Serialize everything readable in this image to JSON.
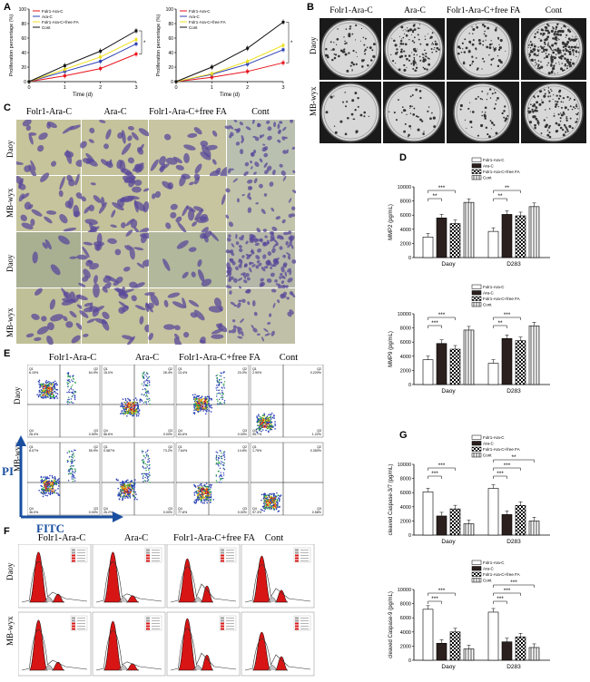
{
  "panels": {
    "A": "A",
    "B": "B",
    "C": "C",
    "D": "D",
    "E": "E",
    "F": "F",
    "G": "G"
  },
  "col_headers": [
    "Folr1-Ara-C",
    "Ara-C",
    "Folr1-Ara-C+free FA",
    "Cont"
  ],
  "row_labels": {
    "daoy": "Daoy",
    "mbwyx": "MB-wyx"
  },
  "flow_axes": {
    "y": "PI",
    "x": "FITC"
  },
  "flow_quadrants": {
    "daoy": [
      {
        "q1": "Q1",
        "q1v": "6.15%",
        "q2": "Q2",
        "q2v": "64.9%",
        "q3": "Q3",
        "q3v": "0.59%",
        "q4": "Q4",
        "q4v": "28.4%"
      },
      {
        "q1": "Q1",
        "q1v": "15.0%",
        "q2": "Q2",
        "q2v": "28.4%",
        "q3": "Q3",
        "q3v": "0.00%",
        "q4": "Q4",
        "q4v": "56.6%"
      },
      {
        "q1": "Q1",
        "q1v": "13.4%",
        "q2": "Q2",
        "q2v": "23.0%",
        "q3": "Q3",
        "q3v": "0.00%",
        "q4": "Q4",
        "q4v": "63.6%"
      },
      {
        "q1": "Q1",
        "q1v": "2.90%",
        "q2": "Q2",
        "q2v": "0.220%",
        "q3": "Q3",
        "q3v": "1.22%",
        "q4": "Q4",
        "q4v": "95.7%"
      }
    ],
    "mbwyx": [
      {
        "q1": "Q1",
        "q1v": "8.07%",
        "q2": "Q2",
        "q2v": "55.9%",
        "q3": "Q3",
        "q3v": "0.00%",
        "q4": "Q4",
        "q4v": "36.0%"
      },
      {
        "q1": "Q1",
        "q1v": "0.587%",
        "q2": "Q2",
        "q2v": "73.2%",
        "q3": "Q3",
        "q3v": "0.00%",
        "q4": "Q4",
        "q4v": "26.2%"
      },
      {
        "q1": "Q1",
        "q1v": "7.64%",
        "q2": "Q2",
        "q2v": "14.6%",
        "q3": "Q3",
        "q3v": "0.00%",
        "q4": "Q4",
        "q4v": "77.8%"
      },
      {
        "q1": "Q1",
        "q1v": "1.75%",
        "q2": "Q2",
        "q2v": "0.350%",
        "q3": "Q3",
        "q3v": "0.58%",
        "q4": "Q4",
        "q4v": "97.3%"
      }
    ]
  },
  "colors": {
    "folr1": "#e8121a",
    "arac": "#2b3fb5",
    "freefa": "#f0e020",
    "cont": "#111111",
    "crystal": "#5a4a9a",
    "bg_stain": "#c9c6a0",
    "flow_red": "#d81515"
  },
  "chart_data": [
    {
      "type": "line",
      "x": [
        0,
        1,
        2,
        3
      ],
      "xlabel": "Time (d)",
      "ylabel": "Proliferation percentage (%)",
      "ylim": [
        0,
        100
      ],
      "yticks": [
        "0",
        "20",
        "40",
        "60",
        "80",
        "100"
      ],
      "xticks": [
        "0",
        "1",
        "2",
        "3"
      ],
      "sig": "*",
      "series": [
        {
          "name": "Folr1-Ara-C",
          "values": [
            0,
            8,
            18,
            38
          ]
        },
        {
          "name": "Ara-C",
          "values": [
            0,
            14,
            28,
            52
          ]
        },
        {
          "name": "Folr1-Ara-C+free FA",
          "values": [
            0,
            17,
            34,
            58
          ]
        },
        {
          "name": "Cont",
          "values": [
            0,
            22,
            42,
            70
          ]
        }
      ]
    },
    {
      "type": "line",
      "x": [
        0,
        1,
        2,
        3
      ],
      "xlabel": "Time (d)",
      "ylabel": "Proliferation percentage (%)",
      "ylim": [
        0,
        100
      ],
      "yticks": [
        "0",
        "20",
        "40",
        "60",
        "80",
        "100"
      ],
      "xticks": [
        "0",
        "1",
        "2",
        "3"
      ],
      "sig": "*",
      "series": [
        {
          "name": "Folr1-Ara-C",
          "values": [
            0,
            6,
            14,
            26
          ]
        },
        {
          "name": "Ara-C",
          "values": [
            0,
            10,
            24,
            44
          ]
        },
        {
          "name": "Folr1-Ara-C+free FA",
          "values": [
            0,
            11,
            28,
            50
          ]
        },
        {
          "name": "Cont",
          "values": [
            0,
            20,
            46,
            82
          ]
        }
      ]
    },
    {
      "type": "bar",
      "categories": [
        "Daoy",
        "D283"
      ],
      "ylabel": "MMP2 (pg/mL)",
      "ylim": [
        0,
        10000
      ],
      "yticks": [
        "0",
        "2000",
        "4000",
        "6000",
        "8000",
        "10000"
      ],
      "legend": [
        "Folr1-Ara-C",
        "Ara-C",
        "Folr1-Ara-C+free FA",
        "Cont"
      ],
      "sig": [
        "**",
        "**",
        "***",
        "**"
      ],
      "series": [
        {
          "name": "Folr1-Ara-C",
          "values": [
            2900,
            3700
          ]
        },
        {
          "name": "Ara-C",
          "values": [
            5600,
            6100
          ]
        },
        {
          "name": "Folr1-Ara-C+free FA",
          "values": [
            4800,
            5900
          ]
        },
        {
          "name": "Cont",
          "values": [
            7800,
            7200
          ]
        }
      ]
    },
    {
      "type": "bar",
      "categories": [
        "Daoy",
        "D283"
      ],
      "ylabel": "MMP9 (pg/mL)",
      "ylim": [
        0,
        10000
      ],
      "yticks": [
        "0",
        "2000",
        "4000",
        "6000",
        "8000",
        "10000"
      ],
      "legend": [
        "Folr1-Ara-C",
        "Ara-C",
        "Folr1-Ara-C+free FA",
        "Cont"
      ],
      "sig": [
        "***",
        "**",
        "***",
        "***"
      ],
      "series": [
        {
          "name": "Folr1-Ara-C",
          "values": [
            3500,
            3000
          ]
        },
        {
          "name": "Ara-C",
          "values": [
            5800,
            6500
          ]
        },
        {
          "name": "Folr1-Ara-C+free FA",
          "values": [
            5000,
            6200
          ]
        },
        {
          "name": "Cont",
          "values": [
            7700,
            8300
          ]
        }
      ]
    },
    {
      "type": "bar",
      "categories": [
        "Daoy",
        "D283"
      ],
      "ylabel": "cleaved Caspase-3/7 (pg/mL)",
      "ylim": [
        0,
        10000
      ],
      "yticks": [
        "0",
        "2000",
        "4000",
        "6000",
        "8000",
        "10000"
      ],
      "legend": [
        "Folr1-Ara-C",
        "Ara-C",
        "Folr1-Ara-C+free FA",
        "Cont"
      ],
      "sig": [
        "***",
        "***",
        "***",
        "***",
        "**"
      ],
      "series": [
        {
          "name": "Folr1-Ara-C",
          "values": [
            6100,
            6600
          ]
        },
        {
          "name": "Ara-C",
          "values": [
            2700,
            2900
          ]
        },
        {
          "name": "Folr1-Ara-C+free FA",
          "values": [
            3700,
            4200
          ]
        },
        {
          "name": "Cont",
          "values": [
            1600,
            2000
          ]
        }
      ]
    },
    {
      "type": "bar",
      "categories": [
        "Daoy",
        "D283"
      ],
      "ylabel": "cleaved Caspase-9 (pg/mL)",
      "ylim": [
        0,
        10000
      ],
      "yticks": [
        "0",
        "2000",
        "4000",
        "6000",
        "8000",
        "10000"
      ],
      "legend": [
        "Folr1-Ara-C",
        "Ara-C",
        "Folr1-Ara-C+free FA",
        "Cont"
      ],
      "sig": [
        "***",
        "***",
        "***",
        "***",
        "***"
      ],
      "series": [
        {
          "name": "Folr1-Ara-C",
          "values": [
            7200,
            6800
          ]
        },
        {
          "name": "Ara-C",
          "values": [
            2400,
            2600
          ]
        },
        {
          "name": "Folr1-Ara-C+free FA",
          "values": [
            4000,
            3300
          ]
        },
        {
          "name": "Cont",
          "values": [
            1600,
            1800
          ]
        }
      ]
    }
  ]
}
